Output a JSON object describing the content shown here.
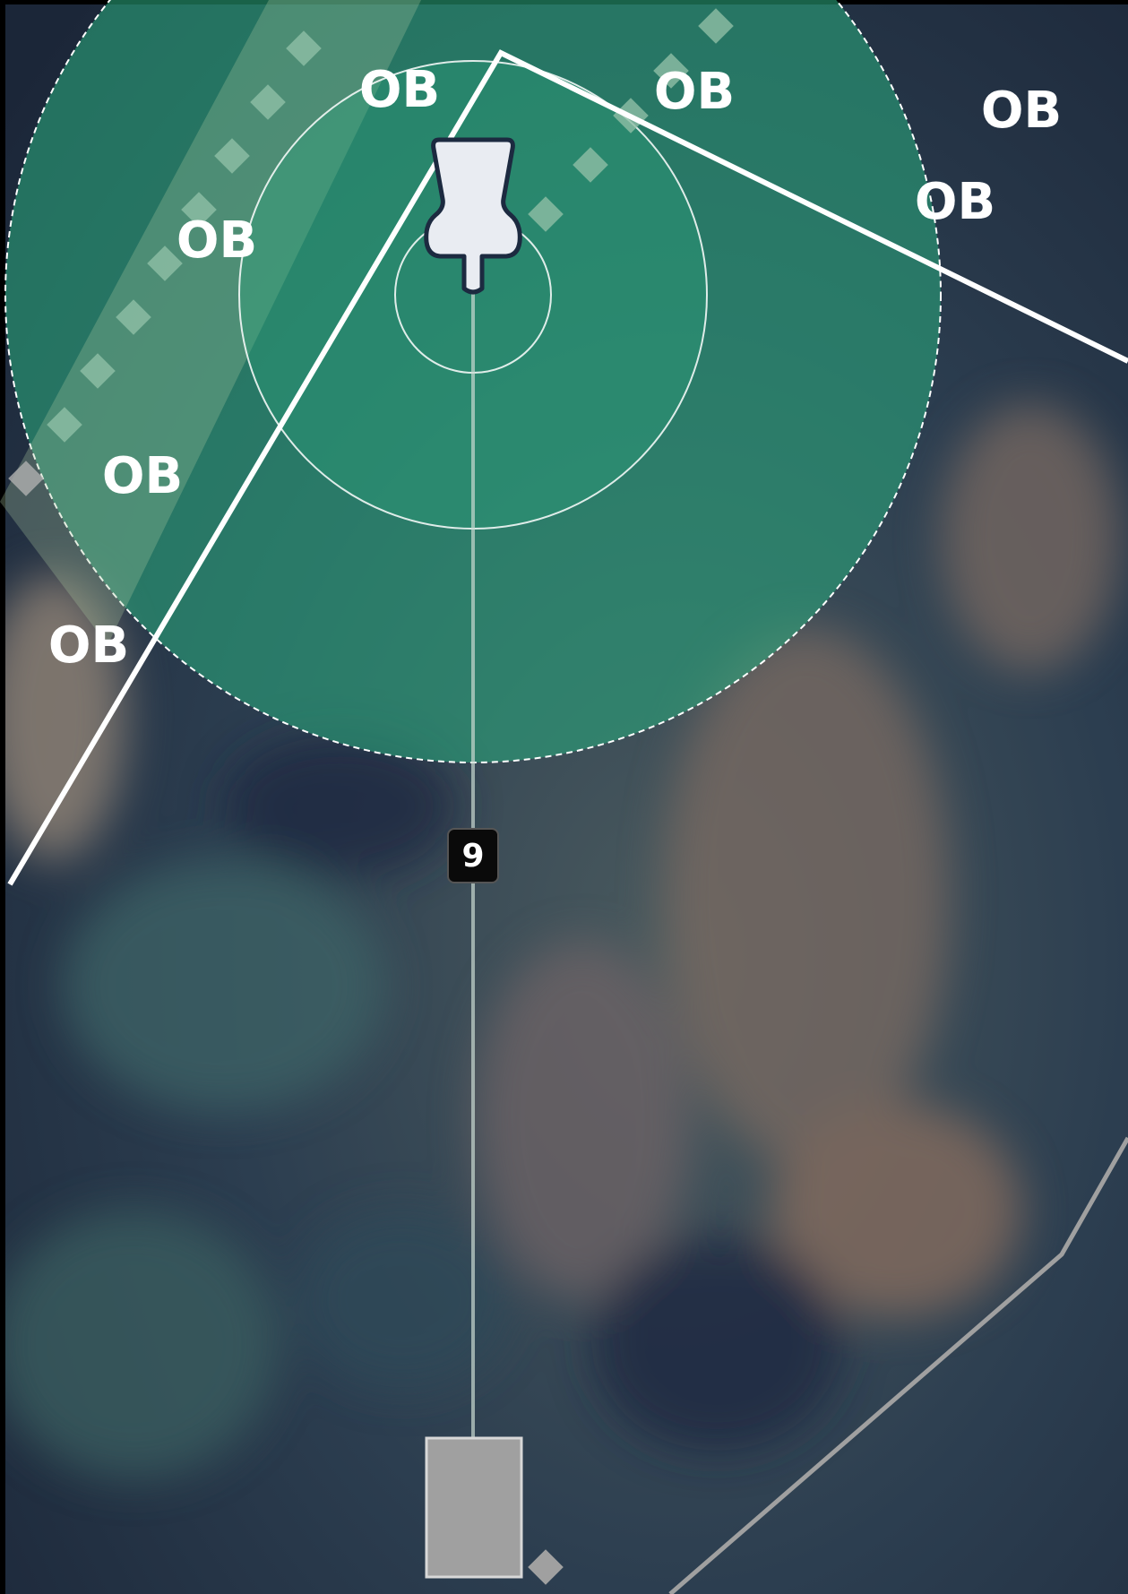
{
  "hole": {
    "number": "9"
  },
  "labels": [
    "OB",
    "OB",
    "OB",
    "OB",
    "OB",
    "OB",
    "OB"
  ]
}
